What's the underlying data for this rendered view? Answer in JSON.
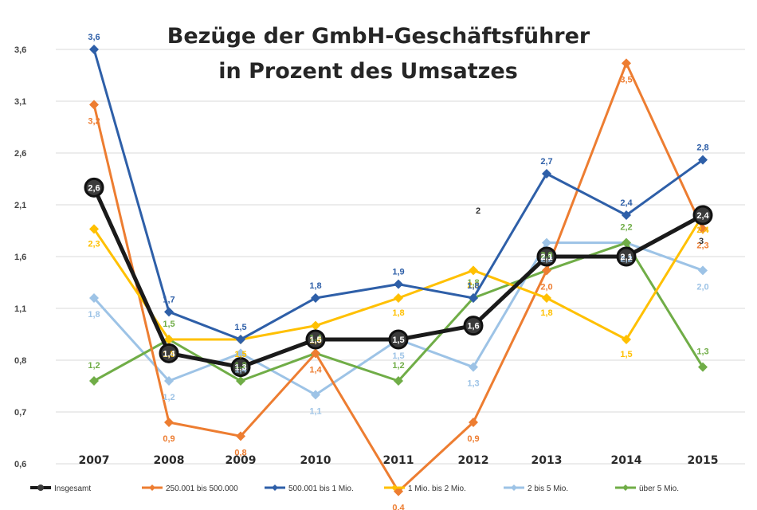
{
  "chart_data": {
    "type": "line",
    "title_lines": [
      "Bezüge der GmbH-Geschäftsführer",
      "in Prozent des Umsatzes"
    ],
    "categories": [
      "2007",
      "2008",
      "2009",
      "2010",
      "2011",
      "2012",
      "2013",
      "2014",
      "2015"
    ],
    "y_tick_labels": [
      "0,6",
      "0,7",
      "0,8",
      "1,1",
      "1,6",
      "2,1",
      "2,6",
      "3,1",
      "3,6"
    ],
    "ylim": [
      0.6,
      3.6
    ],
    "grid": true,
    "legend_position": "bottom",
    "series": [
      {
        "name": "Insgesamt",
        "color": "#1a1a1a",
        "values": [
          2.6,
          1.4,
          1.3,
          1.5,
          1.5,
          1.6,
          2.1,
          2.1,
          2.4
        ],
        "labels": [
          "2,6",
          "1,4",
          "1,3",
          "1,5",
          "1,5",
          "1,6",
          "2,1",
          "2,1",
          "2,4"
        ]
      },
      {
        "name": "250.001 bis 500.000",
        "color": "#ED7D31",
        "values": [
          3.2,
          0.9,
          0.8,
          1.4,
          0.4,
          0.9,
          2.0,
          3.5,
          2.3
        ],
        "labels": [
          "3,2",
          "0,9",
          "0,8",
          "1,4",
          "0,4",
          "0,9",
          "2,0",
          "3,5",
          "2,3"
        ]
      },
      {
        "name": "500.001 bis 1 Mio.",
        "color": "#2E5FA8",
        "values": [
          3.6,
          1.7,
          1.5,
          1.8,
          1.9,
          1.8,
          2.7,
          2.4,
          2.8
        ],
        "labels": [
          "3,6",
          "1,7",
          "1,5",
          "1,8",
          "1,9",
          "1,8",
          "2,7",
          "2,4",
          "2,8"
        ]
      },
      {
        "name": "1 Mio. bis 2 Mio.",
        "color": "#FFC000",
        "values": [
          2.3,
          1.5,
          1.5,
          1.6,
          1.8,
          2.0,
          1.8,
          1.5,
          2.4
        ],
        "labels": [
          "2,3",
          "1,5",
          "1,5",
          "1,6",
          "1,8",
          "2,0",
          "1,8",
          "1,5",
          "2,4"
        ]
      },
      {
        "name": "2 bis 5 Mio.",
        "color": "#9DC3E6",
        "values": [
          1.8,
          1.2,
          1.4,
          1.1,
          1.5,
          1.3,
          2.2,
          2.2,
          2.0
        ],
        "labels": [
          "1,8",
          "1,2",
          "1,4",
          "1,1",
          "1,5",
          "1,3",
          "2,2",
          "2,2",
          "2,0"
        ]
      },
      {
        "name": "über 5 Mio.",
        "color": "#70AD47",
        "values": [
          1.2,
          1.5,
          1.2,
          1.4,
          1.2,
          1.8,
          2.0,
          2.2,
          1.3
        ],
        "labels": [
          "1,2",
          "1,5",
          "1,2",
          "1,4",
          "1,2",
          "1,8",
          "2,0",
          "2,2",
          "1,3"
        ]
      }
    ],
    "extra_labels": [
      "2",
      "3"
    ]
  }
}
